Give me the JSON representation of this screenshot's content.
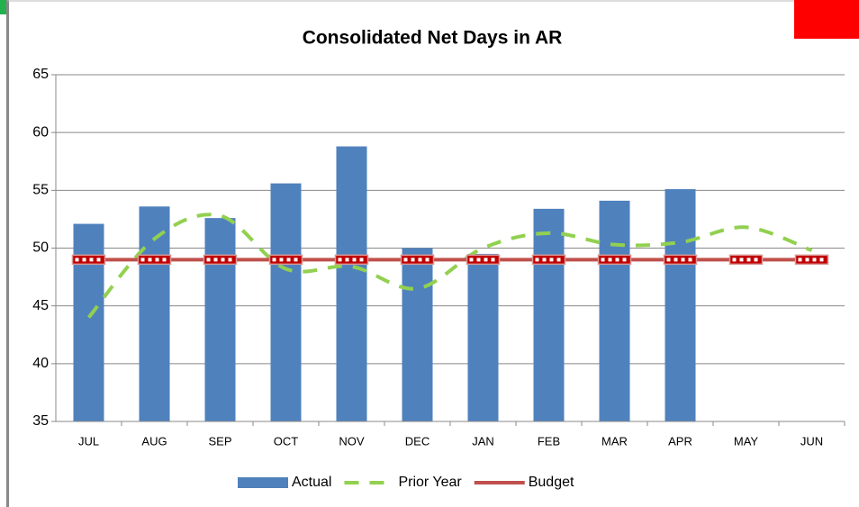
{
  "chart_data": {
    "type": "bar_line",
    "title": "Consolidated Net Days in AR",
    "categories": [
      "JUL",
      "AUG",
      "SEP",
      "OCT",
      "NOV",
      "DEC",
      "JAN",
      "FEB",
      "MAR",
      "APR",
      "MAY",
      "JUN"
    ],
    "series": [
      {
        "name": "Actual",
        "type": "bar",
        "color": "#4f81bd",
        "values": [
          52.1,
          53.6,
          52.6,
          55.6,
          58.8,
          50.0,
          49.5,
          53.4,
          54.1,
          55.1,
          null,
          null
        ]
      },
      {
        "name": "Prior Year",
        "type": "line",
        "dashed": true,
        "smooth": true,
        "color": "#92d050",
        "values": [
          44.0,
          50.8,
          52.8,
          48.2,
          48.4,
          46.5,
          50.0,
          51.3,
          50.3,
          50.5,
          51.8,
          49.8
        ]
      },
      {
        "name": "Budget",
        "type": "line",
        "markers": true,
        "color": "#c0504d",
        "values": [
          49,
          49,
          49,
          49,
          49,
          49,
          49,
          49,
          49,
          49,
          49,
          49
        ]
      }
    ],
    "ylim": [
      35,
      65
    ],
    "yticks": [
      35,
      40,
      45,
      50,
      55,
      60,
      65
    ],
    "grid": true,
    "legend": "bottom"
  }
}
